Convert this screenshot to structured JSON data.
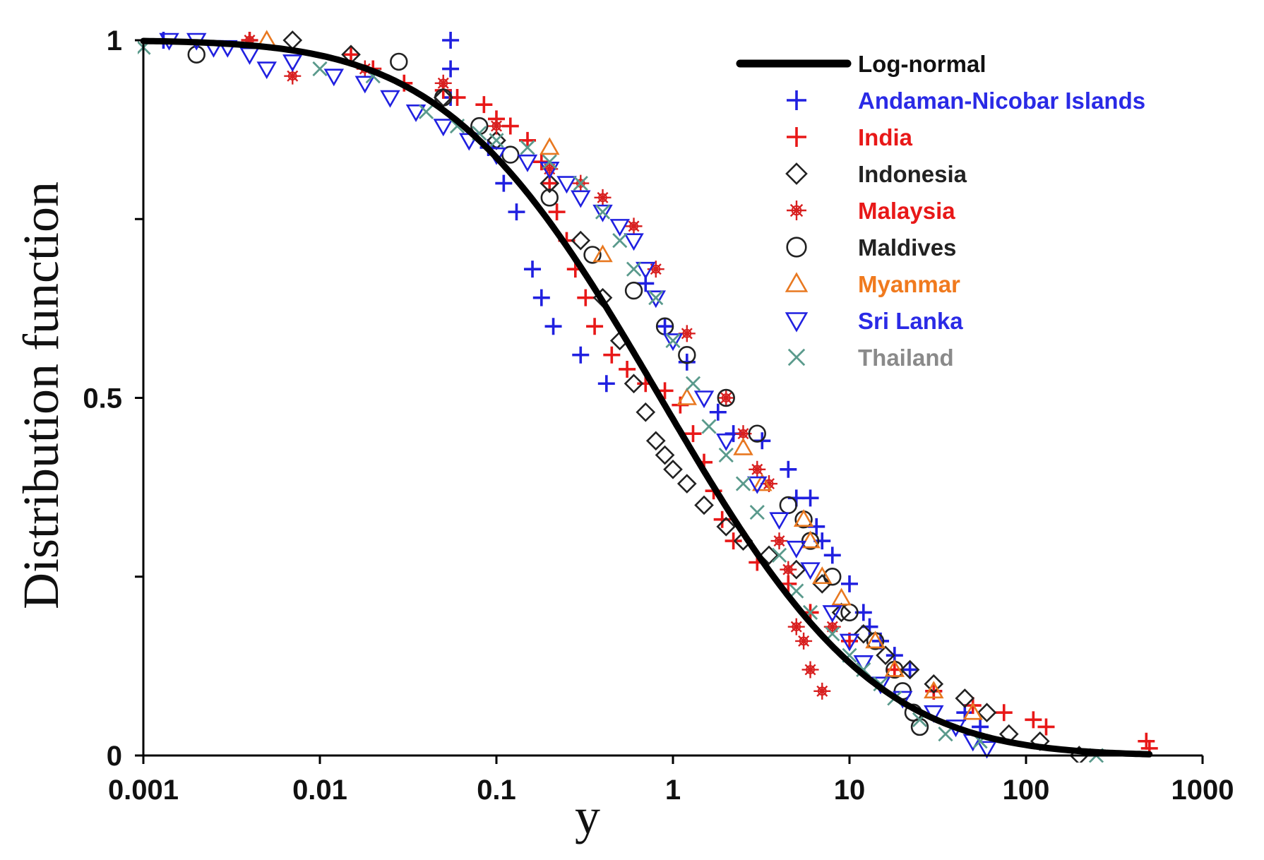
{
  "chart_data": {
    "type": "scatter",
    "title": "",
    "xlabel": "y",
    "ylabel": "Distribution function",
    "xscale": "log",
    "xlim": [
      0.001,
      1000
    ],
    "ylim": [
      0,
      1
    ],
    "x_ticks": [
      {
        "value": 0.001,
        "label": "0.001"
      },
      {
        "value": 0.01,
        "label": "0.01"
      },
      {
        "value": 0.1,
        "label": "0.1"
      },
      {
        "value": 1,
        "label": "1"
      },
      {
        "value": 10,
        "label": "10"
      },
      {
        "value": 100,
        "label": "100"
      },
      {
        "value": 1000,
        "label": "1000"
      }
    ],
    "y_ticks": [
      {
        "value": 0,
        "label": "0"
      },
      {
        "value": 0.25,
        "label": ""
      },
      {
        "value": 0.5,
        "label": "0.5"
      },
      {
        "value": 0.75,
        "label": ""
      },
      {
        "value": 1,
        "label": "1"
      }
    ],
    "grid": false,
    "legend_position": "top-right",
    "curve": {
      "name": "Log-normal",
      "kind": "complementary-lognormal-cdf",
      "median": 0.85,
      "sigma_log10": 0.95,
      "x_range": [
        0.001,
        500
      ],
      "color": "#000000"
    },
    "series": [
      {
        "name": "Andaman-Nicobar Islands",
        "marker": "plus",
        "color": "#2020e0",
        "label_color": "#2a2ae6",
        "points": [
          [
            0.0013,
            1.0
          ],
          [
            0.055,
            1.0
          ],
          [
            0.055,
            0.96
          ],
          [
            0.055,
            0.92
          ],
          [
            0.09,
            0.85
          ],
          [
            0.11,
            0.8
          ],
          [
            0.13,
            0.76
          ],
          [
            0.16,
            0.68
          ],
          [
            0.18,
            0.64
          ],
          [
            0.21,
            0.6
          ],
          [
            0.3,
            0.56
          ],
          [
            0.42,
            0.52
          ],
          [
            0.7,
            0.66
          ],
          [
            0.9,
            0.6
          ],
          [
            1.2,
            0.55
          ],
          [
            1.8,
            0.48
          ],
          [
            2.2,
            0.45
          ],
          [
            3.2,
            0.44
          ],
          [
            4.5,
            0.4
          ],
          [
            5,
            0.36
          ],
          [
            6,
            0.36
          ],
          [
            6.5,
            0.32
          ],
          [
            7,
            0.3
          ],
          [
            8,
            0.28
          ],
          [
            10,
            0.24
          ],
          [
            12,
            0.2
          ],
          [
            13,
            0.18
          ],
          [
            15,
            0.16
          ],
          [
            18,
            0.14
          ],
          [
            22,
            0.12
          ],
          [
            30,
            0.09
          ],
          [
            45,
            0.06
          ],
          [
            55,
            0.04
          ]
        ]
      },
      {
        "name": "India",
        "marker": "plus",
        "color": "#e81818",
        "label_color": "#e81818",
        "points": [
          [
            0.004,
            1.0
          ],
          [
            0.015,
            0.98
          ],
          [
            0.02,
            0.96
          ],
          [
            0.03,
            0.94
          ],
          [
            0.05,
            0.93
          ],
          [
            0.06,
            0.92
          ],
          [
            0.085,
            0.91
          ],
          [
            0.1,
            0.89
          ],
          [
            0.12,
            0.88
          ],
          [
            0.15,
            0.86
          ],
          [
            0.18,
            0.83
          ],
          [
            0.2,
            0.8
          ],
          [
            0.22,
            0.76
          ],
          [
            0.25,
            0.72
          ],
          [
            0.28,
            0.68
          ],
          [
            0.32,
            0.64
          ],
          [
            0.36,
            0.6
          ],
          [
            0.45,
            0.56
          ],
          [
            0.55,
            0.54
          ],
          [
            0.7,
            0.52
          ],
          [
            0.9,
            0.51
          ],
          [
            1.1,
            0.49
          ],
          [
            1.3,
            0.45
          ],
          [
            1.5,
            0.41
          ],
          [
            1.7,
            0.37
          ],
          [
            1.9,
            0.33
          ],
          [
            2.2,
            0.3
          ],
          [
            3,
            0.27
          ],
          [
            4.5,
            0.24
          ],
          [
            6,
            0.2
          ],
          [
            10,
            0.16
          ],
          [
            18,
            0.12
          ],
          [
            30,
            0.09
          ],
          [
            50,
            0.07
          ],
          [
            75,
            0.06
          ],
          [
            110,
            0.05
          ],
          [
            130,
            0.04
          ],
          [
            480,
            0.02
          ],
          [
            500,
            0.01
          ]
        ]
      },
      {
        "name": "Indonesia",
        "marker": "diamond",
        "color": "#222222",
        "label_color": "#222222",
        "points": [
          [
            0.007,
            1.0
          ],
          [
            0.015,
            0.98
          ],
          [
            0.05,
            0.92
          ],
          [
            0.1,
            0.86
          ],
          [
            0.2,
            0.8
          ],
          [
            0.3,
            0.72
          ],
          [
            0.4,
            0.64
          ],
          [
            0.5,
            0.58
          ],
          [
            0.6,
            0.52
          ],
          [
            0.7,
            0.48
          ],
          [
            0.8,
            0.44
          ],
          [
            0.9,
            0.42
          ],
          [
            1,
            0.4
          ],
          [
            1.2,
            0.38
          ],
          [
            1.5,
            0.35
          ],
          [
            2,
            0.32
          ],
          [
            2.5,
            0.3
          ],
          [
            3.5,
            0.28
          ],
          [
            5,
            0.26
          ],
          [
            7,
            0.24
          ],
          [
            9,
            0.2
          ],
          [
            12,
            0.17
          ],
          [
            16,
            0.14
          ],
          [
            22,
            0.12
          ],
          [
            30,
            0.1
          ],
          [
            45,
            0.08
          ],
          [
            60,
            0.06
          ],
          [
            80,
            0.03
          ],
          [
            120,
            0.02
          ],
          [
            200,
            0.0
          ]
        ]
      },
      {
        "name": "Malaysia",
        "marker": "star",
        "color": "#d82020",
        "label_color": "#e81818",
        "points": [
          [
            0.004,
            1.0
          ],
          [
            0.007,
            0.95
          ],
          [
            0.018,
            0.96
          ],
          [
            0.05,
            0.94
          ],
          [
            0.1,
            0.88
          ],
          [
            0.2,
            0.82
          ],
          [
            0.3,
            0.8
          ],
          [
            0.4,
            0.78
          ],
          [
            0.6,
            0.74
          ],
          [
            0.8,
            0.68
          ],
          [
            1.2,
            0.59
          ],
          [
            2,
            0.5
          ],
          [
            2.5,
            0.45
          ],
          [
            3,
            0.4
          ],
          [
            3.5,
            0.38
          ],
          [
            4,
            0.3
          ],
          [
            4.5,
            0.26
          ],
          [
            5,
            0.18
          ],
          [
            5.5,
            0.16
          ],
          [
            6,
            0.12
          ],
          [
            7,
            0.09
          ],
          [
            8,
            0.18
          ]
        ]
      },
      {
        "name": "Maldives",
        "marker": "circle",
        "color": "#222222",
        "label_color": "#222222",
        "points": [
          [
            0.002,
            0.98
          ],
          [
            0.028,
            0.97
          ],
          [
            0.05,
            0.92
          ],
          [
            0.08,
            0.88
          ],
          [
            0.12,
            0.84
          ],
          [
            0.2,
            0.78
          ],
          [
            0.35,
            0.7
          ],
          [
            0.6,
            0.65
          ],
          [
            0.9,
            0.6
          ],
          [
            1.2,
            0.56
          ],
          [
            2,
            0.5
          ],
          [
            3,
            0.45
          ],
          [
            4.5,
            0.35
          ],
          [
            5.5,
            0.33
          ],
          [
            6,
            0.3
          ],
          [
            8,
            0.25
          ],
          [
            10,
            0.2
          ],
          [
            14,
            0.16
          ],
          [
            18,
            0.12
          ],
          [
            20,
            0.09
          ],
          [
            23,
            0.06
          ],
          [
            25,
            0.04
          ]
        ]
      },
      {
        "name": "Myanmar",
        "marker": "triangle-up",
        "color": "#e87820",
        "label_color": "#f07a1e",
        "points": [
          [
            0.005,
            1.0
          ],
          [
            0.2,
            0.85
          ],
          [
            0.4,
            0.7
          ],
          [
            1.2,
            0.5
          ],
          [
            2.5,
            0.43
          ],
          [
            3.2,
            0.38
          ],
          [
            5.5,
            0.33
          ],
          [
            6,
            0.3
          ],
          [
            7,
            0.25
          ],
          [
            9,
            0.22
          ],
          [
            14,
            0.16
          ],
          [
            18,
            0.12
          ],
          [
            30,
            0.09
          ],
          [
            50,
            0.06
          ]
        ]
      },
      {
        "name": "Sri Lanka",
        "marker": "triangle-down",
        "color": "#2020e0",
        "label_color": "#2a2ae6",
        "points": [
          [
            0.0014,
            1.0
          ],
          [
            0.002,
            1.0
          ],
          [
            0.0025,
            0.99
          ],
          [
            0.003,
            0.99
          ],
          [
            0.004,
            0.98
          ],
          [
            0.005,
            0.96
          ],
          [
            0.007,
            0.97
          ],
          [
            0.012,
            0.95
          ],
          [
            0.018,
            0.94
          ],
          [
            0.025,
            0.92
          ],
          [
            0.035,
            0.9
          ],
          [
            0.05,
            0.88
          ],
          [
            0.07,
            0.86
          ],
          [
            0.1,
            0.84
          ],
          [
            0.15,
            0.83
          ],
          [
            0.2,
            0.82
          ],
          [
            0.25,
            0.8
          ],
          [
            0.3,
            0.78
          ],
          [
            0.4,
            0.76
          ],
          [
            0.5,
            0.74
          ],
          [
            0.6,
            0.72
          ],
          [
            0.7,
            0.68
          ],
          [
            0.8,
            0.64
          ],
          [
            1,
            0.58
          ],
          [
            1.5,
            0.5
          ],
          [
            2,
            0.44
          ],
          [
            3,
            0.38
          ],
          [
            4,
            0.33
          ],
          [
            5,
            0.29
          ],
          [
            6,
            0.26
          ],
          [
            8,
            0.2
          ],
          [
            10,
            0.16
          ],
          [
            12,
            0.13
          ],
          [
            15,
            0.1
          ],
          [
            20,
            0.08
          ],
          [
            30,
            0.06
          ],
          [
            40,
            0.04
          ],
          [
            50,
            0.02
          ],
          [
            60,
            0.01
          ]
        ]
      },
      {
        "name": "Thailand",
        "marker": "x",
        "color": "#5a9a8c",
        "label_color": "#8a8a8a",
        "points": [
          [
            0.001,
            0.99
          ],
          [
            0.01,
            0.96
          ],
          [
            0.02,
            0.95
          ],
          [
            0.04,
            0.9
          ],
          [
            0.06,
            0.88
          ],
          [
            0.08,
            0.87
          ],
          [
            0.1,
            0.86
          ],
          [
            0.15,
            0.85
          ],
          [
            0.2,
            0.83
          ],
          [
            0.3,
            0.8
          ],
          [
            0.4,
            0.76
          ],
          [
            0.5,
            0.72
          ],
          [
            0.6,
            0.68
          ],
          [
            0.8,
            0.64
          ],
          [
            1,
            0.58
          ],
          [
            1.3,
            0.52
          ],
          [
            1.6,
            0.46
          ],
          [
            2,
            0.42
          ],
          [
            2.5,
            0.38
          ],
          [
            3,
            0.34
          ],
          [
            4,
            0.28
          ],
          [
            5,
            0.23
          ],
          [
            6,
            0.2
          ],
          [
            8,
            0.17
          ],
          [
            10,
            0.14
          ],
          [
            12,
            0.12
          ],
          [
            15,
            0.1
          ],
          [
            18,
            0.08
          ],
          [
            25,
            0.05
          ],
          [
            35,
            0.03
          ],
          [
            55,
            0.02
          ],
          [
            250,
            0.0
          ]
        ]
      }
    ]
  }
}
